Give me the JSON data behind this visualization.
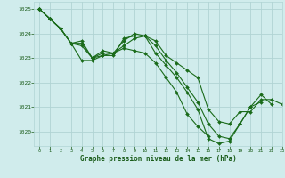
{
  "bg_color": "#d0ecec",
  "grid_color": "#b0d4d4",
  "line_color": "#1a6b1a",
  "marker_color": "#1a6b1a",
  "xlabel": "Graphe pression niveau de la mer (hPa)",
  "xlabel_color": "#1a5c1a",
  "tick_color": "#1a5c1a",
  "ylim": [
    1019.4,
    1025.3
  ],
  "xlim": [
    -0.5,
    23
  ],
  "yticks": [
    1020,
    1021,
    1022,
    1023,
    1024,
    1025
  ],
  "xticks": [
    0,
    1,
    2,
    3,
    4,
    5,
    6,
    7,
    8,
    9,
    10,
    11,
    12,
    13,
    14,
    15,
    16,
    17,
    18,
    19,
    20,
    21,
    22,
    23
  ],
  "series": [
    [
      1025.0,
      1024.6,
      1024.2,
      1023.6,
      1022.9,
      1022.9,
      1023.1,
      1023.1,
      1023.8,
      1023.9,
      1023.9,
      1023.7,
      1023.1,
      1022.8,
      1022.5,
      1022.2,
      1020.9,
      1020.4,
      1020.3,
      1020.8,
      1020.8,
      1021.3,
      1021.3,
      1021.1
    ],
    [
      1025.0,
      1024.6,
      1024.2,
      1023.6,
      1023.7,
      1023.0,
      1023.3,
      1023.2,
      1023.7,
      1024.0,
      1023.9,
      1023.2,
      1022.7,
      1022.2,
      1021.6,
      1020.9,
      1019.7,
      1019.5,
      1019.6,
      1020.3,
      1021.0,
      1021.5,
      1021.1,
      null
    ],
    [
      1025.0,
      1024.6,
      1024.2,
      1023.6,
      1023.6,
      1023.0,
      1023.2,
      1023.2,
      1023.4,
      1023.3,
      1023.2,
      1022.8,
      1022.2,
      1021.6,
      1020.7,
      1020.2,
      1019.8,
      null,
      null,
      null,
      null,
      null,
      null,
      null
    ],
    [
      1025.0,
      1024.6,
      1024.2,
      1023.6,
      1023.5,
      1023.0,
      1023.1,
      1023.2,
      1023.5,
      1023.8,
      1023.9,
      1023.5,
      1022.9,
      1022.4,
      1021.8,
      1021.2,
      1020.3,
      1019.8,
      1019.7,
      1020.3,
      1021.0,
      1021.2,
      null,
      null
    ]
  ]
}
